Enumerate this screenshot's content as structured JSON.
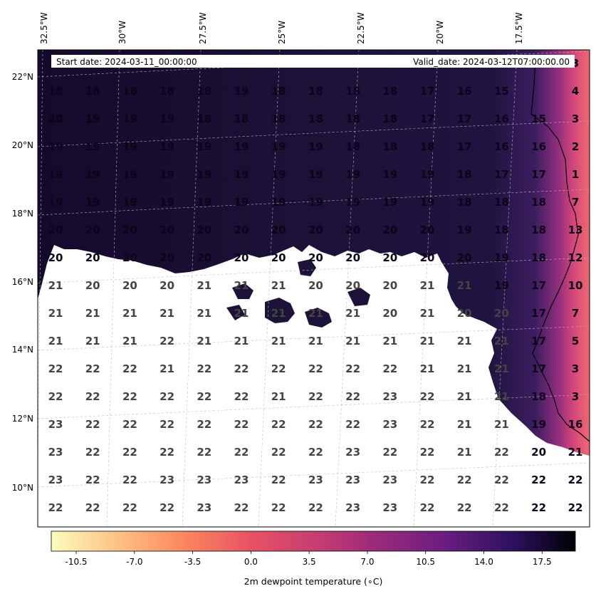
{
  "map": {
    "lon_labels": [
      "32.5°W",
      "30°W",
      "27.5°W",
      "25°W",
      "22.5°W",
      "20°W",
      "17.5°W"
    ],
    "lat_labels": [
      "22°N",
      "20°N",
      "18°N",
      "16°N",
      "14°N",
      "12°N",
      "10°N"
    ],
    "info": {
      "start": "Start date: 2024-03-11_00:00:00",
      "valid": "Valid_date: 2024-03-12T07:00:00.00"
    },
    "cell_values": [
      [
        null,
        null,
        null,
        null,
        null,
        null,
        null,
        null,
        null,
        null,
        null,
        null,
        null,
        "3"
      ],
      [
        "18",
        "18",
        "18",
        "18",
        "18",
        "19",
        "18",
        "18",
        "18",
        "18",
        "17",
        "16",
        "15",
        "4"
      ],
      [
        "20",
        "19",
        "19",
        "19",
        "18",
        "18",
        "18",
        "18",
        "18",
        "18",
        "17",
        "17",
        "16",
        "15",
        "3"
      ],
      [
        "19",
        "19",
        "19",
        "19",
        "19",
        "19",
        "19",
        "19",
        "18",
        "18",
        "18",
        "17",
        "16",
        "16",
        "2"
      ],
      [
        "19",
        "19",
        "19",
        "19",
        "19",
        "19",
        "19",
        "19",
        "19",
        "19",
        "19",
        "18",
        "17",
        "17",
        "1"
      ],
      [
        "19",
        "19",
        "19",
        "19",
        "19",
        "19",
        "19",
        "19",
        "19",
        "19",
        "19",
        "18",
        "18",
        "18",
        "7"
      ],
      [
        "20",
        "20",
        "20",
        "20",
        "20",
        "20",
        "20",
        "20",
        "20",
        "20",
        "20",
        "19",
        "18",
        "18",
        "13"
      ],
      [
        "20",
        "20",
        "20",
        "20",
        "20",
        "20",
        "20",
        "20",
        "20",
        "20",
        "20",
        "20",
        "19",
        "18",
        "12"
      ],
      [
        "21",
        "20",
        "20",
        "20",
        "21",
        "21",
        "21",
        "20",
        "20",
        "20",
        "21",
        "21",
        "19",
        "17",
        "10"
      ],
      [
        "21",
        "21",
        "21",
        "21",
        "21",
        "21",
        "21",
        "21",
        "21",
        "20",
        "21",
        "20",
        "20",
        "17",
        "7"
      ],
      [
        "21",
        "21",
        "21",
        "22",
        "21",
        "21",
        "21",
        "21",
        "21",
        "21",
        "21",
        "21",
        "21",
        "17",
        "5"
      ],
      [
        "22",
        "22",
        "22",
        "21",
        "22",
        "22",
        "22",
        "22",
        "22",
        "22",
        "21",
        "21",
        "21",
        "17",
        "3"
      ],
      [
        "22",
        "22",
        "22",
        "22",
        "22",
        "22",
        "21",
        "22",
        "22",
        "23",
        "22",
        "21",
        "21",
        "18",
        "3"
      ],
      [
        "23",
        "22",
        "22",
        "22",
        "22",
        "22",
        "22",
        "22",
        "22",
        "23",
        "22",
        "21",
        "21",
        "19",
        "16"
      ],
      [
        "23",
        "22",
        "22",
        "22",
        "22",
        "22",
        "22",
        "22",
        "23",
        "22",
        "22",
        "21",
        "22",
        "20",
        "21"
      ],
      [
        "23",
        "22",
        "22",
        "23",
        "23",
        "23",
        "22",
        "23",
        "23",
        "23",
        "22",
        "22",
        "22",
        "22",
        "22"
      ],
      [
        "22",
        "22",
        "22",
        "22",
        "23",
        "22",
        "22",
        "22",
        "23",
        "23",
        "22",
        "22",
        "22",
        "22",
        "22"
      ]
    ],
    "colors": {
      "land": "#000000",
      "ocean": "#ffffff",
      "dark_field": "#1a0f33",
      "warm_edge": "#e8506a"
    }
  },
  "colorbar": {
    "ticks": [
      "-10.5",
      "-7.0",
      "-3.5",
      "0.0",
      "3.5",
      "7.0",
      "10.5",
      "14.0",
      "17.5"
    ],
    "label": "2m dewpoint temperature (∘C)",
    "colormap": "magma_r"
  }
}
